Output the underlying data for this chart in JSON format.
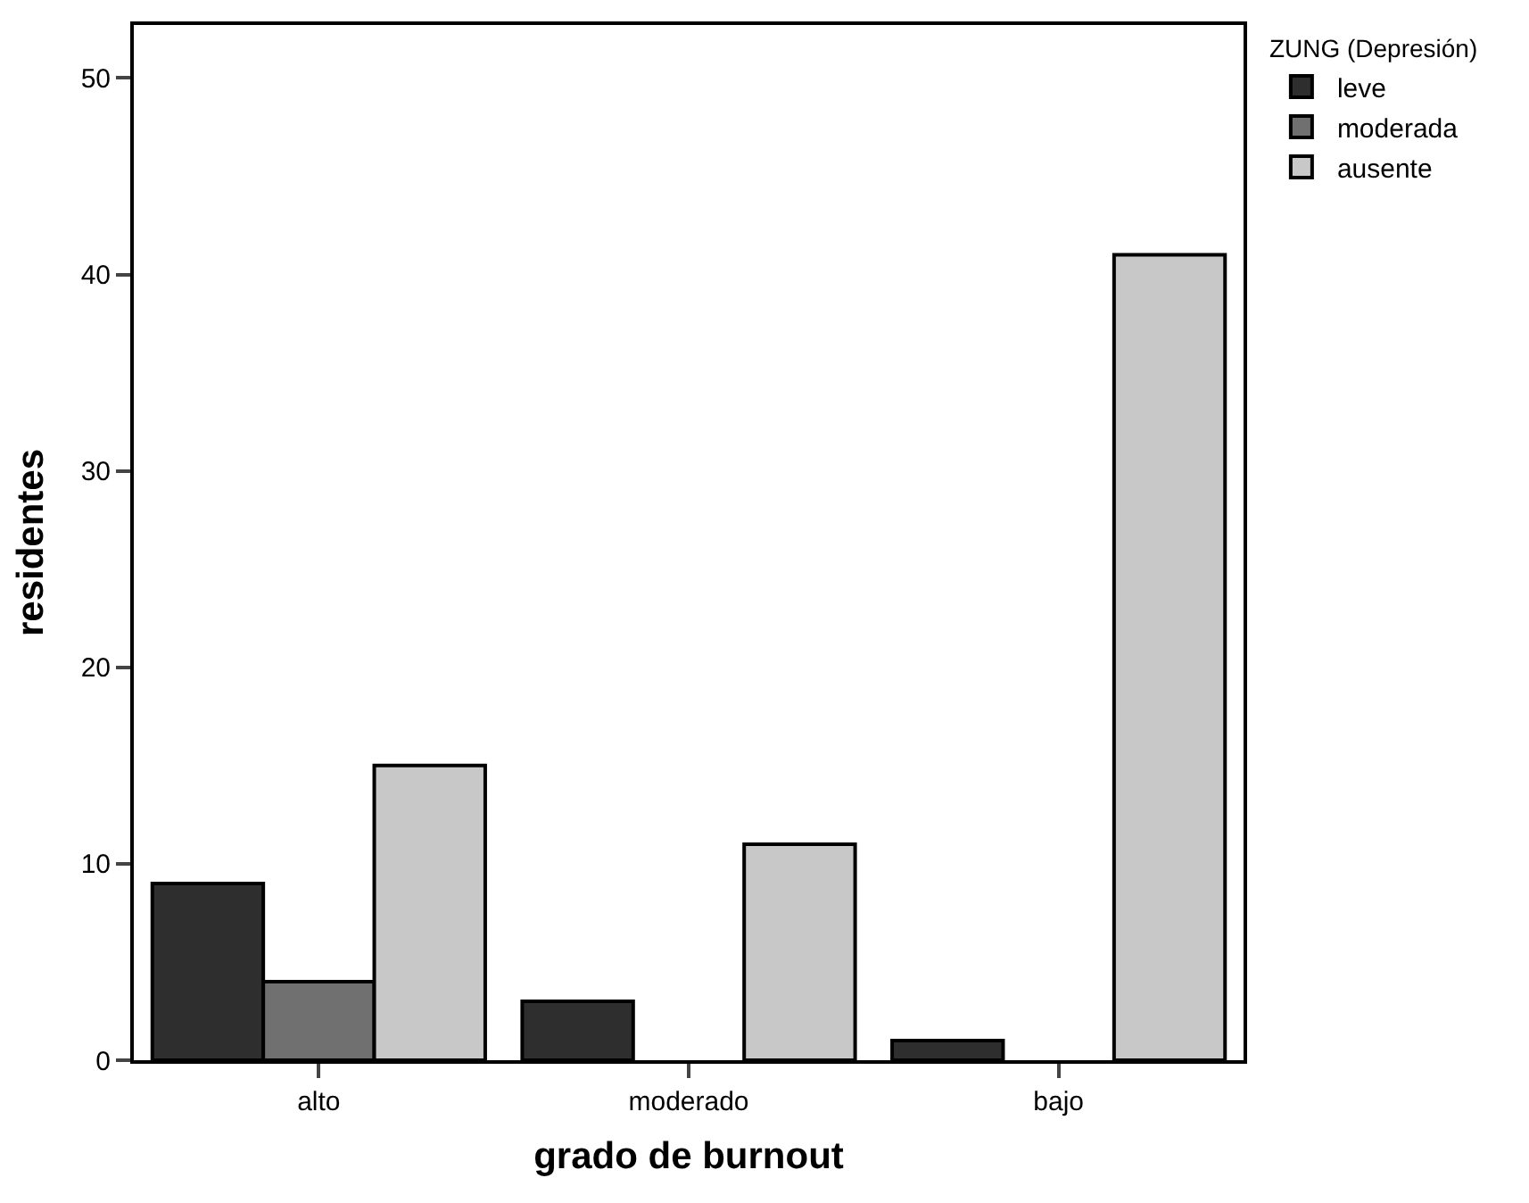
{
  "chart_data": {
    "type": "bar",
    "xlabel": "grado de burnout",
    "ylabel": "residentes",
    "legend_title": "ZUNG (Depresión)",
    "categories": [
      "alto",
      "moderado",
      "bajo"
    ],
    "series": [
      {
        "name": "leve",
        "color": "#2e2e2e",
        "values": [
          9,
          3,
          1
        ]
      },
      {
        "name": "moderada",
        "color": "#707070",
        "values": [
          4,
          null,
          null
        ]
      },
      {
        "name": "ausente",
        "color": "#c8c8c8",
        "values": [
          15,
          11,
          41
        ]
      }
    ],
    "ylim": [
      0,
      52.7
    ],
    "yticks": [
      0,
      10,
      20,
      30,
      40,
      50
    ],
    "legend": "top right"
  }
}
